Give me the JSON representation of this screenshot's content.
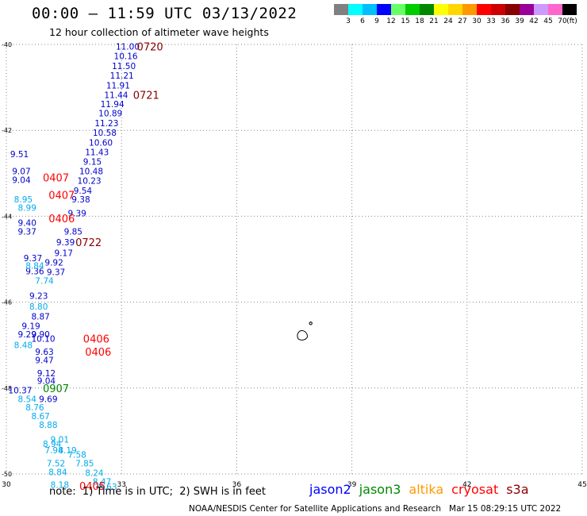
{
  "title": "00:00 – 11:59 UTC 03/13/2022",
  "subtitle": "12 hour collection of altimeter wave heights",
  "legend": {
    "unit": "(ft)",
    "bins": [
      {
        "label": "3",
        "color": "#808080"
      },
      {
        "label": "6",
        "color": "#00ffff"
      },
      {
        "label": "9",
        "color": "#00bfff"
      },
      {
        "label": "12",
        "color": "#0000ff"
      },
      {
        "label": "15",
        "color": "#66ff66"
      },
      {
        "label": "18",
        "color": "#00cc00"
      },
      {
        "label": "21",
        "color": "#008800"
      },
      {
        "label": "24",
        "color": "#ffff00"
      },
      {
        "label": "27",
        "color": "#ffd700"
      },
      {
        "label": "30",
        "color": "#ff9900"
      },
      {
        "label": "33",
        "color": "#ff0000"
      },
      {
        "label": "36",
        "color": "#cc0000"
      },
      {
        "label": "39",
        "color": "#880000"
      },
      {
        "label": "42",
        "color": "#990099"
      },
      {
        "label": "45",
        "color": "#cc99ff"
      },
      {
        "label": "70",
        "color": "#ff66cc"
      },
      {
        "label": "",
        "color": "#000000"
      }
    ]
  },
  "axes": {
    "lon_ticks": [
      "30",
      "33",
      "36",
      "39",
      "42",
      "45"
    ],
    "lat_ticks": [
      "-40",
      "-42",
      "-44",
      "-46",
      "-48",
      "-50"
    ]
  },
  "observations": [
    {
      "v": "11.00",
      "c": "#0000cc",
      "lon": 32.85,
      "lat": -40.05
    },
    {
      "v": "10.16",
      "c": "#0000cc",
      "lon": 32.8,
      "lat": -40.27
    },
    {
      "v": "11.50",
      "c": "#0000cc",
      "lon": 32.75,
      "lat": -40.5
    },
    {
      "v": "11.21",
      "c": "#0000cc",
      "lon": 32.7,
      "lat": -40.72
    },
    {
      "v": "11.91",
      "c": "#0000cc",
      "lon": 32.6,
      "lat": -40.95
    },
    {
      "v": "11.44",
      "c": "#0000cc",
      "lon": 32.55,
      "lat": -41.17
    },
    {
      "v": "11.94",
      "c": "#0000cc",
      "lon": 32.45,
      "lat": -41.39
    },
    {
      "v": "10.89",
      "c": "#0000cc",
      "lon": 32.4,
      "lat": -41.6
    },
    {
      "v": "11.23",
      "c": "#0000cc",
      "lon": 32.3,
      "lat": -41.83
    },
    {
      "v": "10.58",
      "c": "#0000cc",
      "lon": 32.25,
      "lat": -42.05
    },
    {
      "v": "10.60",
      "c": "#0000cc",
      "lon": 32.15,
      "lat": -42.28
    },
    {
      "v": "11.43",
      "c": "#0000cc",
      "lon": 32.05,
      "lat": -42.5
    },
    {
      "v": "9.15",
      "c": "#0000cc",
      "lon": 32.0,
      "lat": -42.73
    },
    {
      "v": "10.48",
      "c": "#0000cc",
      "lon": 31.9,
      "lat": -42.95
    },
    {
      "v": "10.23",
      "c": "#0000cc",
      "lon": 31.85,
      "lat": -43.17
    },
    {
      "v": "9.54",
      "c": "#0000cc",
      "lon": 31.75,
      "lat": -43.4
    },
    {
      "v": "9.38",
      "c": "#0000cc",
      "lon": 31.7,
      "lat": -43.6
    },
    {
      "v": "9.39",
      "c": "#0000cc",
      "lon": 31.6,
      "lat": -43.93
    },
    {
      "v": "9.85",
      "c": "#0000cc",
      "lon": 31.5,
      "lat": -44.35
    },
    {
      "v": "9.39",
      "c": "#0000cc",
      "lon": 31.3,
      "lat": -44.6
    },
    {
      "v": "9.17",
      "c": "#0000cc",
      "lon": 31.25,
      "lat": -44.85
    },
    {
      "v": "9.92",
      "c": "#0000cc",
      "lon": 31.0,
      "lat": -45.07
    },
    {
      "v": "9.37",
      "c": "#0000cc",
      "lon": 31.05,
      "lat": -45.3
    },
    {
      "v": "9.51",
      "c": "#0000cc",
      "lon": 30.1,
      "lat": -42.55
    },
    {
      "v": "9.07",
      "c": "#0000cc",
      "lon": 30.15,
      "lat": -42.95
    },
    {
      "v": "9.04",
      "c": "#0000cc",
      "lon": 30.15,
      "lat": -43.15
    },
    {
      "v": "9.40",
      "c": "#0000cc",
      "lon": 30.3,
      "lat": -44.15
    },
    {
      "v": "9.37",
      "c": "#0000cc",
      "lon": 30.3,
      "lat": -44.35
    },
    {
      "v": "9.37",
      "c": "#0000cc",
      "lon": 30.45,
      "lat": -44.97
    },
    {
      "v": "9.36",
      "c": "#0000cc",
      "lon": 30.5,
      "lat": -45.28
    },
    {
      "v": "9.23",
      "c": "#0000cc",
      "lon": 30.6,
      "lat": -45.85
    },
    {
      "v": "8.87",
      "c": "#0000cc",
      "lon": 30.65,
      "lat": -46.33
    },
    {
      "v": "9.19",
      "c": "#0000cc",
      "lon": 30.4,
      "lat": -46.55
    },
    {
      "v": "9.29",
      "c": "#0000cc",
      "lon": 30.3,
      "lat": -46.75
    },
    {
      "v": "9.90",
      "c": "#0000cc",
      "lon": 30.65,
      "lat": -46.75
    },
    {
      "v": "10.10",
      "c": "#0000cc",
      "lon": 30.65,
      "lat": -46.85
    },
    {
      "v": "9.63",
      "c": "#0000cc",
      "lon": 30.75,
      "lat": -47.15
    },
    {
      "v": "9.47",
      "c": "#0000cc",
      "lon": 30.75,
      "lat": -47.35
    },
    {
      "v": "9.12",
      "c": "#0000cc",
      "lon": 30.8,
      "lat": -47.65
    },
    {
      "v": "9.04",
      "c": "#0000cc",
      "lon": 30.8,
      "lat": -47.83
    },
    {
      "v": "10.37",
      "c": "#0000cc",
      "lon": 30.05,
      "lat": -48.05
    },
    {
      "v": "9.69",
      "c": "#0000cc",
      "lon": 30.85,
      "lat": -48.25
    },
    {
      "v": "8.95",
      "c": "#00aaee",
      "lon": 30.2,
      "lat": -43.6
    },
    {
      "v": "8.99",
      "c": "#00aaee",
      "lon": 30.3,
      "lat": -43.8
    },
    {
      "v": "8.84",
      "c": "#00aaee",
      "lon": 30.5,
      "lat": -45.15
    },
    {
      "v": "7.74",
      "c": "#00aaee",
      "lon": 30.75,
      "lat": -45.5
    },
    {
      "v": "8.80",
      "c": "#00aaee",
      "lon": 30.6,
      "lat": -46.1
    },
    {
      "v": "8.48",
      "c": "#00aaee",
      "lon": 30.2,
      "lat": -47.0
    },
    {
      "v": "8.54",
      "c": "#00aaee",
      "lon": 30.3,
      "lat": -48.25
    },
    {
      "v": "8.76",
      "c": "#00aaee",
      "lon": 30.5,
      "lat": -48.45
    },
    {
      "v": "8.67",
      "c": "#00aaee",
      "lon": 30.65,
      "lat": -48.65
    },
    {
      "v": "8.88",
      "c": "#00aaee",
      "lon": 30.85,
      "lat": -48.85
    },
    {
      "v": "8.94",
      "c": "#00aaee",
      "lon": 30.95,
      "lat": -49.3
    },
    {
      "v": "7.94",
      "c": "#00aaee",
      "lon": 31.0,
      "lat": -49.45
    },
    {
      "v": "7.58",
      "c": "#00aaee",
      "lon": 31.6,
      "lat": -49.55
    },
    {
      "v": "7.52",
      "c": "#00aaee",
      "lon": 31.05,
      "lat": -49.75
    },
    {
      "v": "7.85",
      "c": "#00aaee",
      "lon": 31.8,
      "lat": -49.75
    },
    {
      "v": "8.84",
      "c": "#00aaee",
      "lon": 31.1,
      "lat": -49.95
    },
    {
      "v": "8.24",
      "c": "#00aaee",
      "lon": 32.05,
      "lat": -49.97
    },
    {
      "v": "8.19",
      "c": "#00aaee",
      "lon": 31.35,
      "lat": -49.45
    },
    {
      "v": "8.47",
      "c": "#00aaee",
      "lon": 32.25,
      "lat": -50.18
    },
    {
      "v": "8.18",
      "c": "#00aaee",
      "lon": 31.15,
      "lat": -50.25
    },
    {
      "v": "9.01",
      "c": "#00aaee",
      "lon": 31.15,
      "lat": -49.2
    },
    {
      "v": "8.63",
      "c": "#00aaee",
      "lon": 32.4,
      "lat": -50.3
    }
  ],
  "track_labels": [
    {
      "t": "0720",
      "c": "#880000",
      "lon": 33.4,
      "lat": -40.05
    },
    {
      "t": "0721",
      "c": "#880000",
      "lon": 33.3,
      "lat": -41.17
    },
    {
      "t": "0722",
      "c": "#880000",
      "lon": 31.8,
      "lat": -44.6
    },
    {
      "t": "0407",
      "c": "#ff0000",
      "lon": 30.95,
      "lat": -43.1
    },
    {
      "t": "0407",
      "c": "#ff0000",
      "lon": 31.1,
      "lat": -43.5
    },
    {
      "t": "0406",
      "c": "#ff0000",
      "lon": 31.1,
      "lat": -44.05
    },
    {
      "t": "0406",
      "c": "#ff0000",
      "lon": 32.0,
      "lat": -46.85
    },
    {
      "t": "0406",
      "c": "#ff0000",
      "lon": 32.05,
      "lat": -47.15
    },
    {
      "t": "0907",
      "c": "#008800",
      "lon": 30.95,
      "lat": -48.0
    },
    {
      "t": "0405",
      "c": "#ff0000",
      "lon": 31.9,
      "lat": -50.28
    }
  ],
  "note": "note:  1) Time is in UTC;  2) SWH is in feet",
  "satellites": [
    {
      "name": "jason2",
      "color": "#0000ff"
    },
    {
      "name": "jason3",
      "color": "#008800"
    },
    {
      "name": "altika",
      "color": "#ff9900"
    },
    {
      "name": "cryosat",
      "color": "#ff0000"
    },
    {
      "name": "s3a",
      "color": "#880000"
    }
  ],
  "credit": "NOAA/NESDIS Center for Satellite Applications and Research   Mar 15 08:29:15 UTC 2022"
}
